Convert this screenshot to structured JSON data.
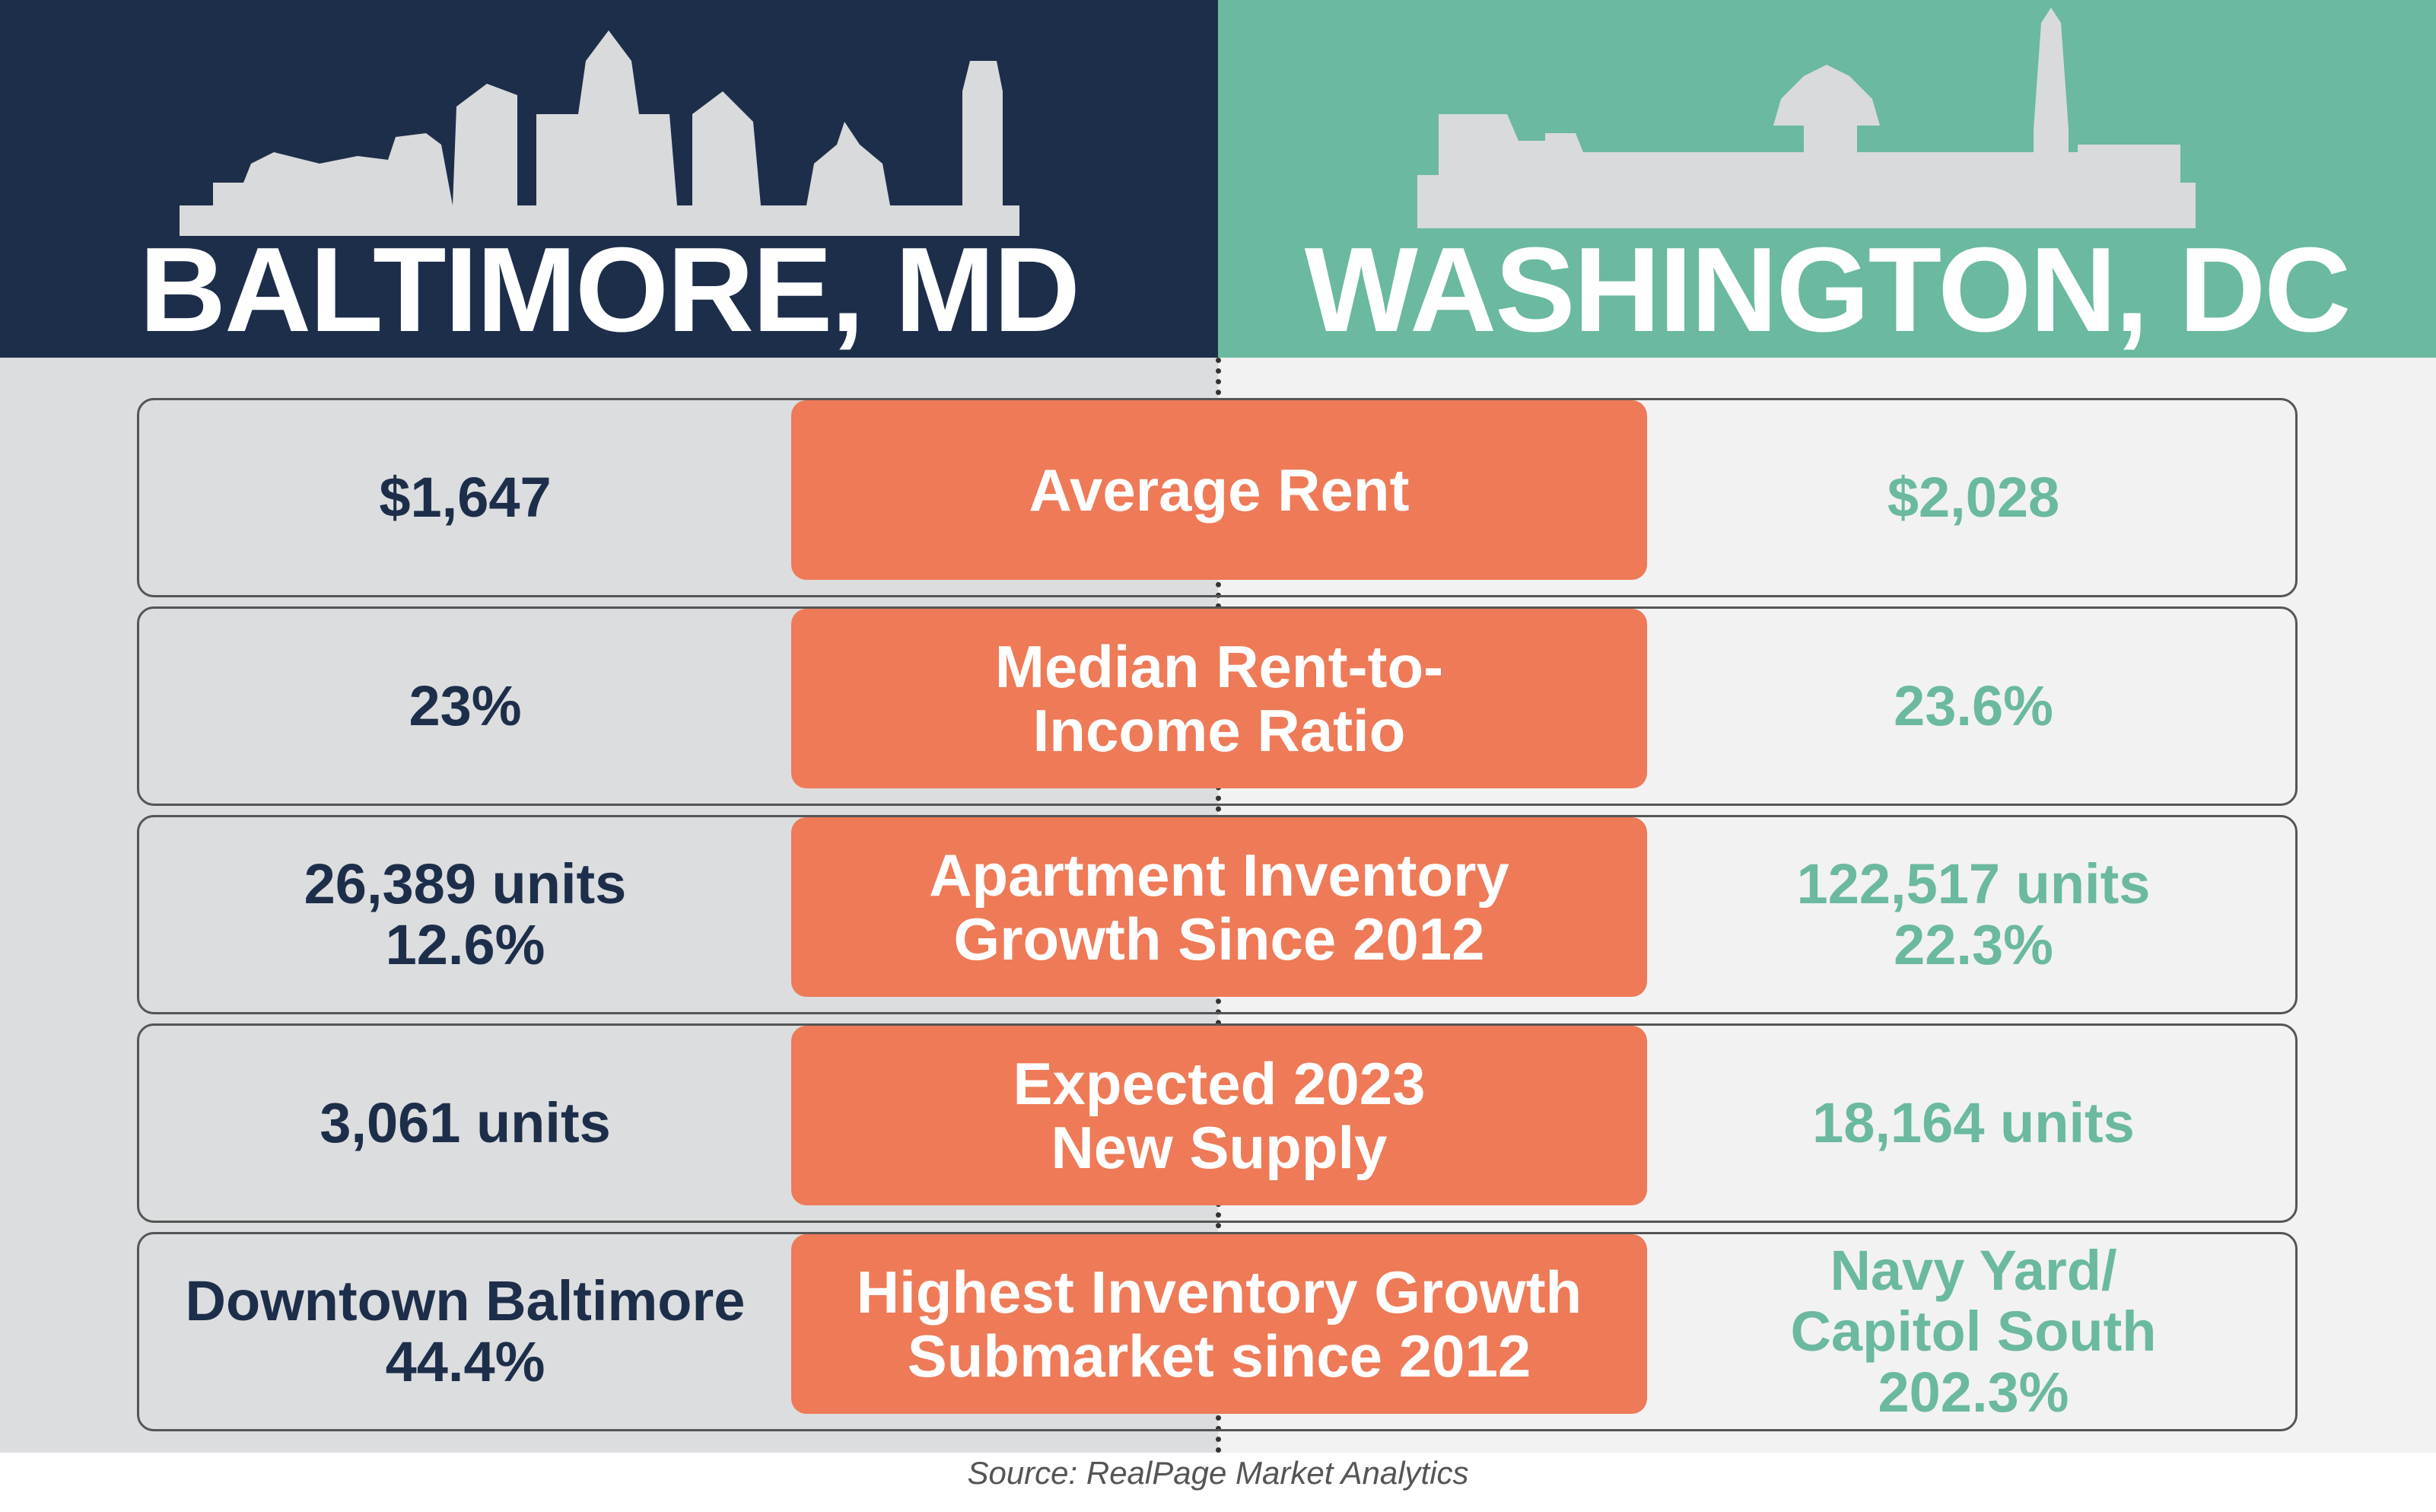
{
  "header": {
    "left": {
      "title": "BALTIMORE, MD"
    },
    "right": {
      "title": "WASHINGTON, DC"
    }
  },
  "rows": [
    {
      "label": [
        "Average Rent"
      ],
      "left": [
        "$1,647"
      ],
      "right": [
        "$2,028"
      ]
    },
    {
      "label": [
        "Median Rent-to-",
        "Income Ratio"
      ],
      "left": [
        "23%"
      ],
      "right": [
        "23.6%"
      ]
    },
    {
      "label": [
        "Apartment Inventory",
        "Growth Since 2012"
      ],
      "left": [
        "26,389 units",
        "12.6%"
      ],
      "right": [
        "122,517 units",
        "22.3%"
      ]
    },
    {
      "label": [
        "Expected 2023",
        "New Supply"
      ],
      "left": [
        "3,061 units"
      ],
      "right": [
        "18,164 units"
      ]
    },
    {
      "label": [
        "Highest Inventory Growth",
        "Submarket since 2012"
      ],
      "left": [
        "Downtown Baltimore",
        "44.4%"
      ],
      "right": [
        "Navy Yard/",
        "Capitol South",
        "202.3%"
      ]
    }
  ],
  "source": "Source: RealPage Market Analytics"
}
